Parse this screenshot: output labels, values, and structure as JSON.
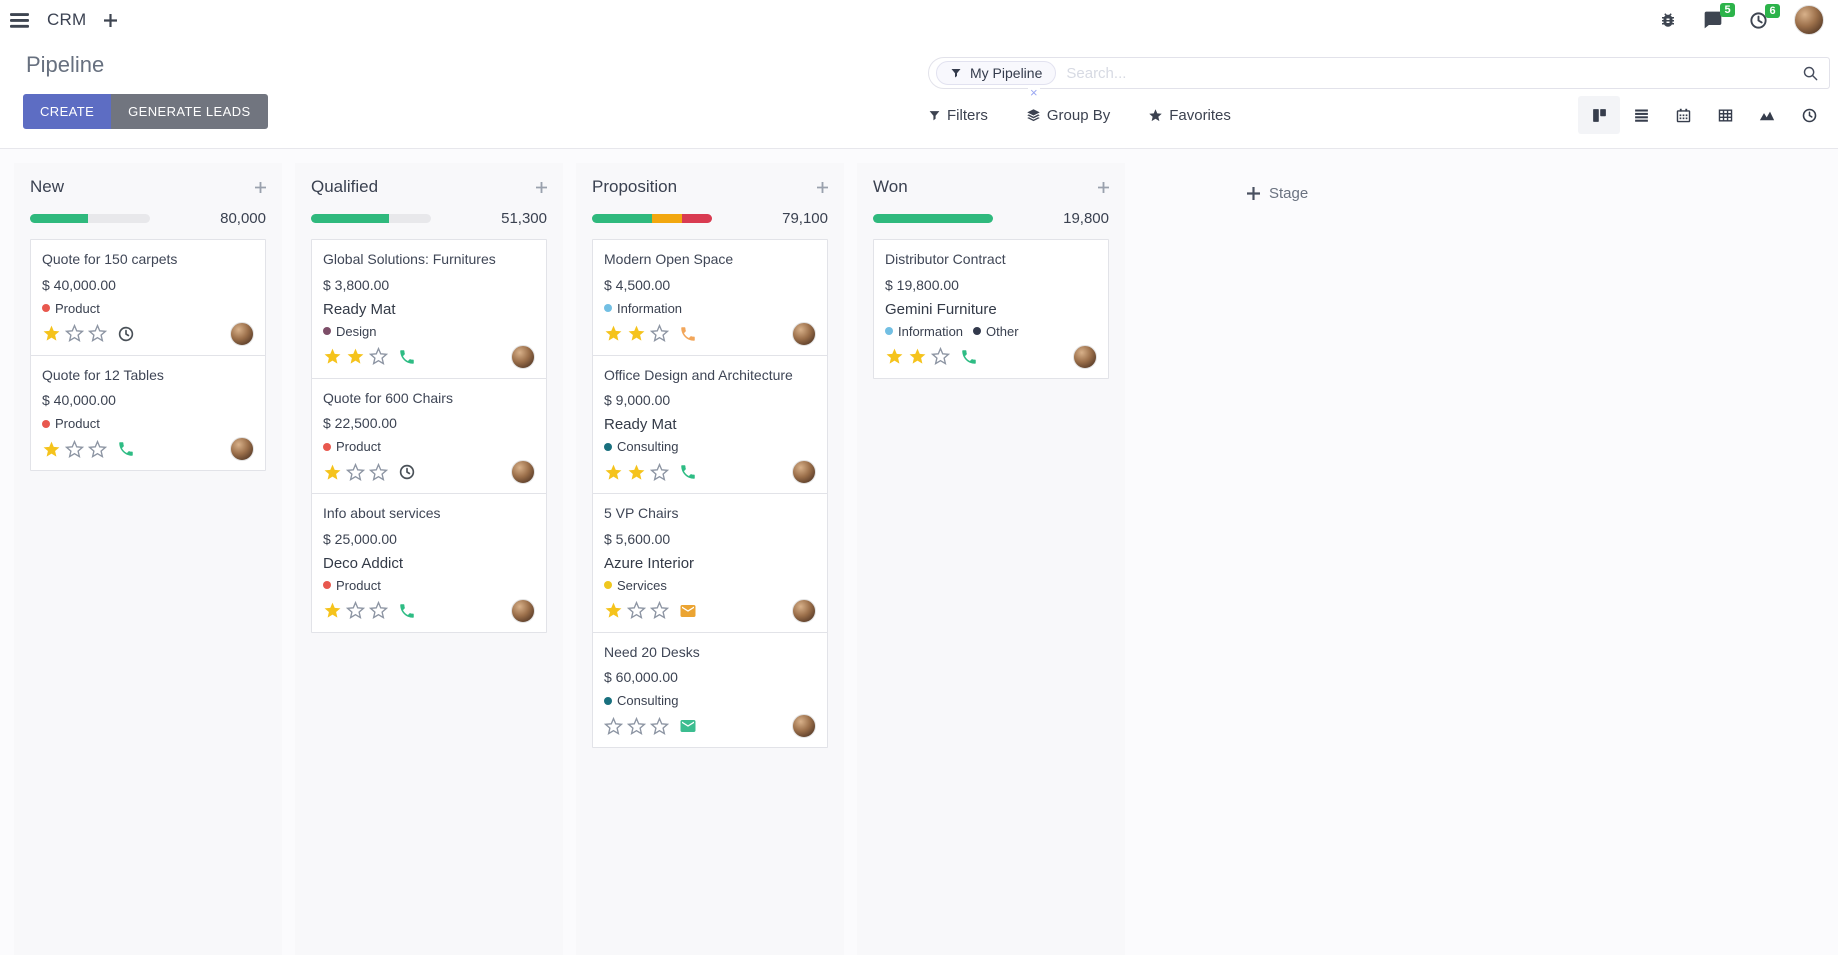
{
  "navbar": {
    "app_name": "CRM",
    "messages_badge": "5",
    "activities_badge": "6",
    "badge_color": "#2cb34a"
  },
  "control_panel": {
    "title": "Pipeline",
    "create_label": "CREATE",
    "generate_label": "GENERATE LEADS",
    "create_color": "#5d6dc3",
    "generate_color": "#71757f",
    "search": {
      "facet_label": "My Pipeline",
      "facet_remove": "×",
      "placeholder": "Search..."
    },
    "filters_label": "Filters",
    "group_by_label": "Group By",
    "favorites_label": "Favorites",
    "views": [
      "kanban",
      "list",
      "calendar",
      "pivot",
      "graph",
      "activity"
    ],
    "active_view": "kanban"
  },
  "board": {
    "add_stage_label": "Stage",
    "star_filled_color": "#f5c31c",
    "star_empty_color": "#8d95a3",
    "columns": [
      {
        "title": "New",
        "count": "80,000",
        "progress": [
          {
            "color": "#2fb97d",
            "width": "48%"
          }
        ],
        "cards": [
          {
            "title": "Quote for 150 carpets",
            "amount": "$ 40,000.00",
            "tags": [
              {
                "label": "Product",
                "color": "#e8584e"
              }
            ],
            "stars": 1,
            "activity_icon": "clock-icon",
            "activity_color": "#495057"
          },
          {
            "title": "Quote for 12 Tables",
            "amount": "$ 40,000.00",
            "tags": [
              {
                "label": "Product",
                "color": "#e8584e"
              }
            ],
            "stars": 1,
            "activity_icon": "phone-icon",
            "activity_color": "#2ebc84"
          }
        ]
      },
      {
        "title": "Qualified",
        "count": "51,300",
        "progress": [
          {
            "color": "#2fb97d",
            "width": "65%"
          }
        ],
        "cards": [
          {
            "title": "Global Solutions: Furnitures",
            "amount": "$ 3,800.00",
            "partner": "Ready Mat",
            "tags": [
              {
                "label": "Design",
                "color": "#7d4e68"
              }
            ],
            "stars": 2,
            "activity_icon": "phone-icon",
            "activity_color": "#2ebc84"
          },
          {
            "title": "Quote for 600 Chairs",
            "amount": "$ 22,500.00",
            "tags": [
              {
                "label": "Product",
                "color": "#e8584e"
              }
            ],
            "stars": 1,
            "activity_icon": "clock-icon",
            "activity_color": "#495057"
          },
          {
            "title": "Info about services",
            "amount": "$ 25,000.00",
            "partner": "Deco Addict",
            "tags": [
              {
                "label": "Product",
                "color": "#e8584e"
              }
            ],
            "stars": 1,
            "activity_icon": "phone-icon",
            "activity_color": "#2ebc84"
          }
        ]
      },
      {
        "title": "Proposition",
        "count": "79,100",
        "progress": [
          {
            "color": "#2fb97d",
            "width": "50%"
          },
          {
            "color": "#f2a70f",
            "width": "25%"
          },
          {
            "color": "#d93b51",
            "width": "25%"
          }
        ],
        "cards": [
          {
            "title": "Modern Open Space",
            "amount": "$ 4,500.00",
            "tags": [
              {
                "label": "Information",
                "color": "#72bfe3"
              }
            ],
            "stars": 2,
            "activity_icon": "phone-icon",
            "activity_color": "#f2a65a"
          },
          {
            "title": "Office Design and Architecture",
            "amount": "$ 9,000.00",
            "partner": "Ready Mat",
            "tags": [
              {
                "label": "Consulting",
                "color": "#19707e"
              }
            ],
            "stars": 2,
            "activity_icon": "phone-icon",
            "activity_color": "#2ebc84"
          },
          {
            "title": "5 VP Chairs",
            "amount": "$ 5,600.00",
            "partner": "Azure Interior",
            "tags": [
              {
                "label": "Services",
                "color": "#efc71e"
              }
            ],
            "stars": 1,
            "activity_icon": "envelope-icon",
            "activity_color": "#eba432"
          },
          {
            "title": "Need 20 Desks",
            "amount": "$ 60,000.00",
            "tags": [
              {
                "label": "Consulting",
                "color": "#19707e"
              }
            ],
            "stars": 0,
            "activity_icon": "envelope-icon",
            "activity_color": "#3cbd90"
          }
        ]
      },
      {
        "title": "Won",
        "count": "19,800",
        "progress": [
          {
            "color": "#2fb97d",
            "width": "100%"
          }
        ],
        "cards": [
          {
            "title": "Distributor Contract",
            "amount": "$ 19,800.00",
            "partner": "Gemini Furniture",
            "tags": [
              {
                "label": "Information",
                "color": "#72bfe3"
              },
              {
                "label": "Other",
                "color": "#32394c"
              }
            ],
            "stars": 2,
            "activity_icon": "phone-icon",
            "activity_color": "#2ebc84"
          }
        ]
      }
    ]
  }
}
